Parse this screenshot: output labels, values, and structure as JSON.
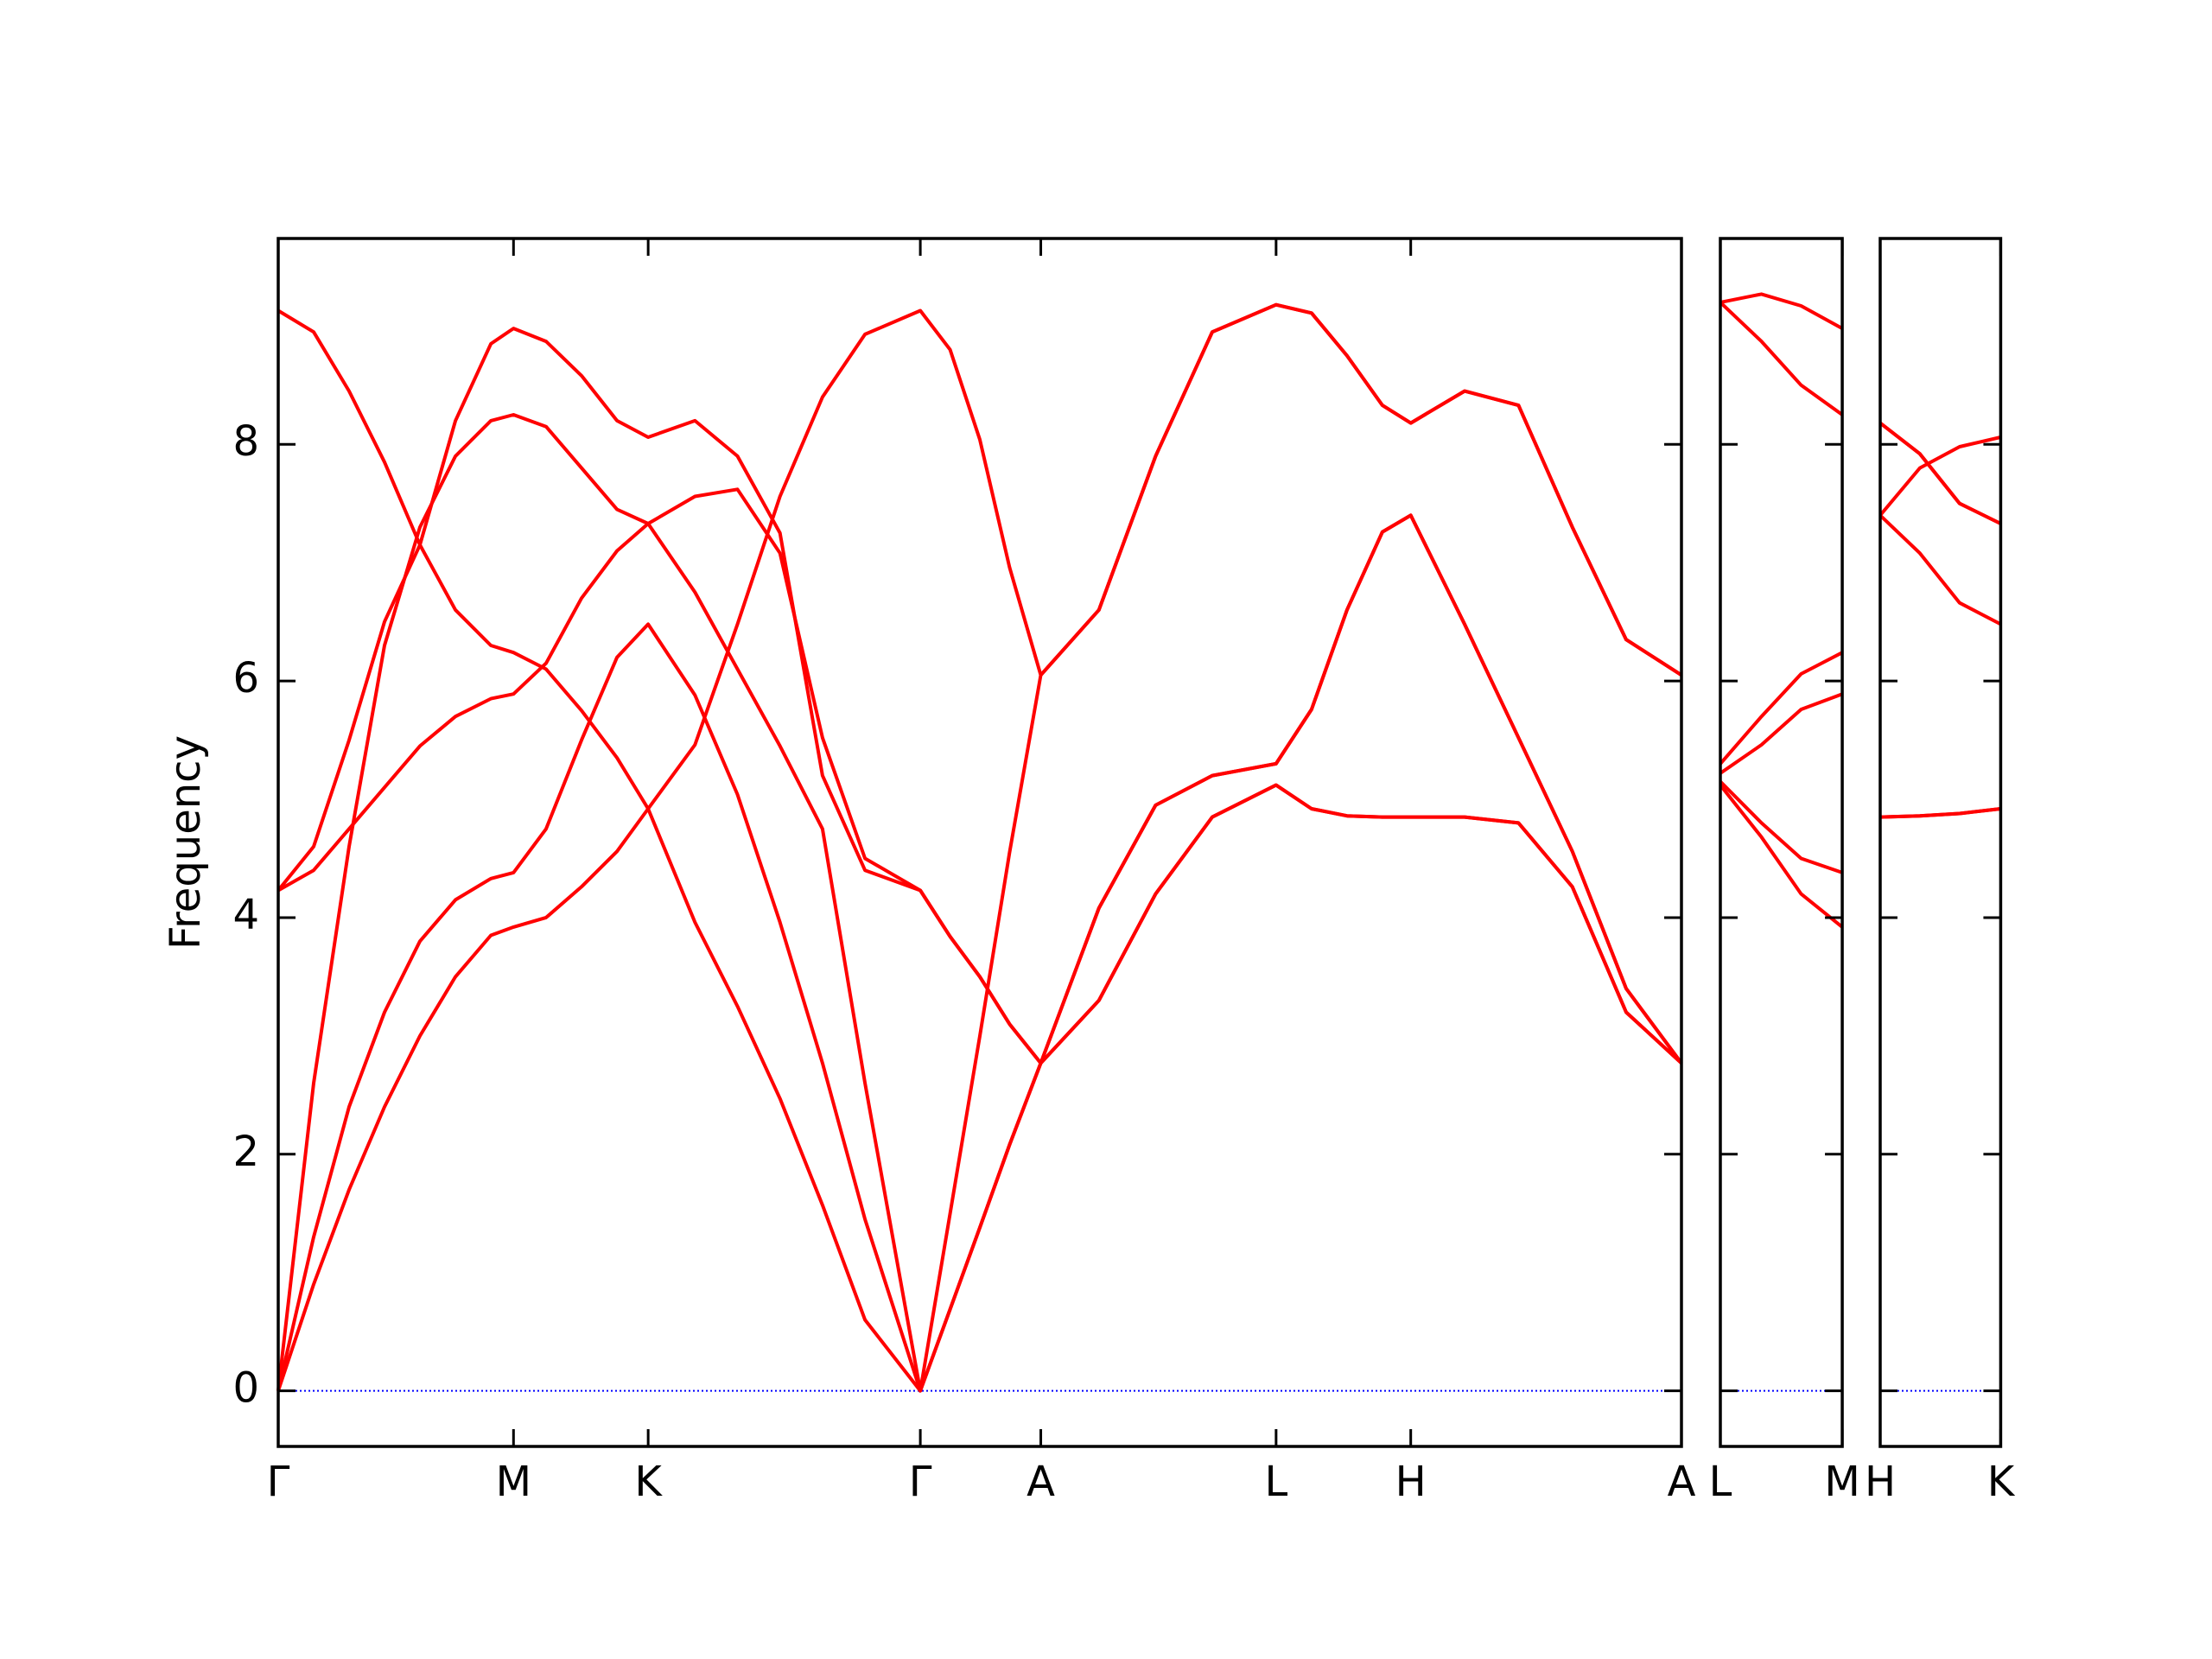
{
  "chart_data": [
    {
      "type": "line",
      "ylabel": "Frequency",
      "xlim": [
        0,
        9.9
      ],
      "ylim": [
        -0.47,
        9.74
      ],
      "yticks": [
        0,
        2,
        4,
        6,
        8
      ],
      "ytick_labels": true,
      "xticks": [
        {
          "value": 0,
          "label": "Γ"
        },
        {
          "value": 1.66,
          "label": "M"
        },
        {
          "value": 2.61,
          "label": "K"
        },
        {
          "value": 4.53,
          "label": "Γ"
        },
        {
          "value": 5.38,
          "label": "A"
        },
        {
          "value": 7.04,
          "label": "L"
        },
        {
          "value": 7.99,
          "label": "H"
        },
        {
          "value": 9.9,
          "label": "A"
        }
      ],
      "hline": {
        "value": 0,
        "color": "#0000ff"
      },
      "x": [
        0,
        0.25,
        0.5,
        0.75,
        1.0,
        1.25,
        1.5,
        1.66,
        1.89,
        2.14,
        2.39,
        2.61,
        2.94,
        3.24,
        3.54,
        3.84,
        4.14,
        4.53,
        4.74,
        4.95,
        5.16,
        5.38,
        5.79,
        6.19,
        6.59,
        7.04,
        7.29,
        7.54,
        7.79,
        7.99,
        8.37,
        8.75,
        9.13,
        9.51,
        9.9
      ],
      "series": [
        {
          "color": "#ff0000",
          "values": [
            0,
            0.9,
            1.7,
            2.4,
            3.0,
            3.5,
            3.85,
            3.92,
            4.0,
            4.26,
            4.56,
            4.92,
            3.96,
            3.25,
            2.47,
            1.57,
            0.6,
            0,
            0.69,
            1.38,
            2.08,
            2.77,
            3.3,
            4.2,
            4.85,
            5.12,
            4.92,
            4.86,
            4.85,
            4.85,
            4.85,
            4.8,
            4.26,
            3.2,
            2.77
          ]
        },
        {
          "color": "#ff0000",
          "values": [
            0,
            1.3,
            2.4,
            3.2,
            3.8,
            4.15,
            4.33,
            4.38,
            4.75,
            5.5,
            6.2,
            6.48,
            5.88,
            5.04,
            3.96,
            2.77,
            1.45,
            0,
            0.69,
            1.38,
            2.08,
            2.77,
            4.08,
            4.95,
            5.2,
            5.3,
            5.76,
            6.6,
            7.26,
            7.4,
            6.48,
            5.52,
            4.56,
            3.4,
            2.77
          ]
        },
        {
          "color": "#ff0000",
          "values": [
            0,
            2.6,
            4.6,
            6.3,
            7.3,
            7.9,
            8.2,
            8.25,
            8.15,
            7.8,
            7.45,
            7.33,
            7.56,
            7.62,
            7.08,
            5.52,
            4.5,
            4.23,
            3.84,
            3.5,
            3.1,
            2.77,
            3.3,
            4.2,
            4.85,
            5.12,
            4.92,
            4.86,
            4.85,
            4.85,
            4.85,
            4.8,
            4.26,
            3.2,
            2.77
          ]
        },
        {
          "color": "#ff0000",
          "values": [
            4.23,
            4.6,
            5.5,
            6.5,
            7.15,
            8.2,
            8.85,
            8.98,
            8.87,
            8.58,
            8.2,
            8.06,
            8.2,
            7.9,
            7.25,
            5.2,
            4.4,
            4.23,
            3.84,
            3.5,
            3.1,
            2.77,
            4.08,
            4.95,
            5.2,
            5.3,
            5.76,
            6.6,
            7.26,
            7.4,
            6.48,
            5.52,
            4.56,
            3.4,
            2.77
          ]
        },
        {
          "color": "#ff0000",
          "values": [
            4.23,
            4.4,
            4.75,
            5.1,
            5.45,
            5.7,
            5.85,
            5.89,
            6.15,
            6.7,
            7.1,
            7.33,
            6.75,
            6.1,
            5.45,
            4.75,
            2.6,
            0,
            1.5,
            3.0,
            4.55,
            6.05,
            6.6,
            7.9,
            8.95,
            9.18,
            9.11,
            8.75,
            8.33,
            8.18,
            8.45,
            8.33,
            7.3,
            6.35,
            6.05
          ]
        },
        {
          "color": "#ff0000",
          "values": [
            9.13,
            8.95,
            8.45,
            7.85,
            7.15,
            6.6,
            6.3,
            6.24,
            6.1,
            5.75,
            5.35,
            4.92,
            5.46,
            6.48,
            7.56,
            8.4,
            8.93,
            9.13,
            8.8,
            8.04,
            6.96,
            6.05,
            6.6,
            7.9,
            8.95,
            9.18,
            9.11,
            8.75,
            8.33,
            8.18,
            8.45,
            8.33,
            7.3,
            6.35,
            6.05
          ]
        }
      ]
    },
    {
      "type": "line",
      "xlim": [
        0,
        0.86
      ],
      "ylim": [
        -0.47,
        9.74
      ],
      "yticks": [
        0,
        2,
        4,
        6,
        8
      ],
      "ytick_labels": false,
      "xticks": [
        {
          "value": 0,
          "label": "L"
        },
        {
          "value": 0.86,
          "label": "M"
        }
      ],
      "hline": {
        "value": 0,
        "color": "#0000ff"
      },
      "x": [
        0,
        0.29,
        0.57,
        0.86
      ],
      "series": [
        {
          "color": "#ff0000",
          "values": [
            5.15,
            4.8,
            4.5,
            4.38
          ]
        },
        {
          "color": "#ff0000",
          "values": [
            5.3,
            5.7,
            6.06,
            6.24
          ]
        },
        {
          "color": "#ff0000",
          "values": [
            5.12,
            4.68,
            4.2,
            3.92
          ]
        },
        {
          "color": "#ff0000",
          "values": [
            5.22,
            5.46,
            5.76,
            5.89
          ]
        },
        {
          "color": "#ff0000",
          "values": [
            9.2,
            8.87,
            8.5,
            8.25
          ]
        },
        {
          "color": "#ff0000",
          "values": [
            9.2,
            9.27,
            9.17,
            8.98
          ]
        }
      ]
    },
    {
      "type": "line",
      "xlim": [
        0,
        0.85
      ],
      "ylim": [
        -0.47,
        9.74
      ],
      "yticks": [
        0,
        2,
        4,
        6,
        8
      ],
      "ytick_labels": false,
      "xticks": [
        {
          "value": 0,
          "label": "H"
        },
        {
          "value": 0.85,
          "label": "K"
        }
      ],
      "hline": {
        "value": 0,
        "color": "#0000ff"
      },
      "x": [
        0,
        0.28,
        0.56,
        0.85
      ],
      "series": [
        {
          "color": "#ff0000",
          "values": [
            4.85,
            4.86,
            4.88,
            4.92
          ]
        },
        {
          "color": "#ff0000",
          "values": [
            7.4,
            7.8,
            7.98,
            8.06
          ]
        },
        {
          "color": "#ff0000",
          "values": [
            4.85,
            4.86,
            4.88,
            4.92
          ]
        },
        {
          "color": "#ff0000",
          "values": [
            7.4,
            7.08,
            6.66,
            6.48
          ]
        },
        {
          "color": "#ff0000",
          "values": [
            8.18,
            7.92,
            7.5,
            7.33
          ]
        },
        {
          "color": "#ff0000",
          "values": [
            8.18,
            7.92,
            7.5,
            7.33
          ]
        }
      ]
    }
  ]
}
